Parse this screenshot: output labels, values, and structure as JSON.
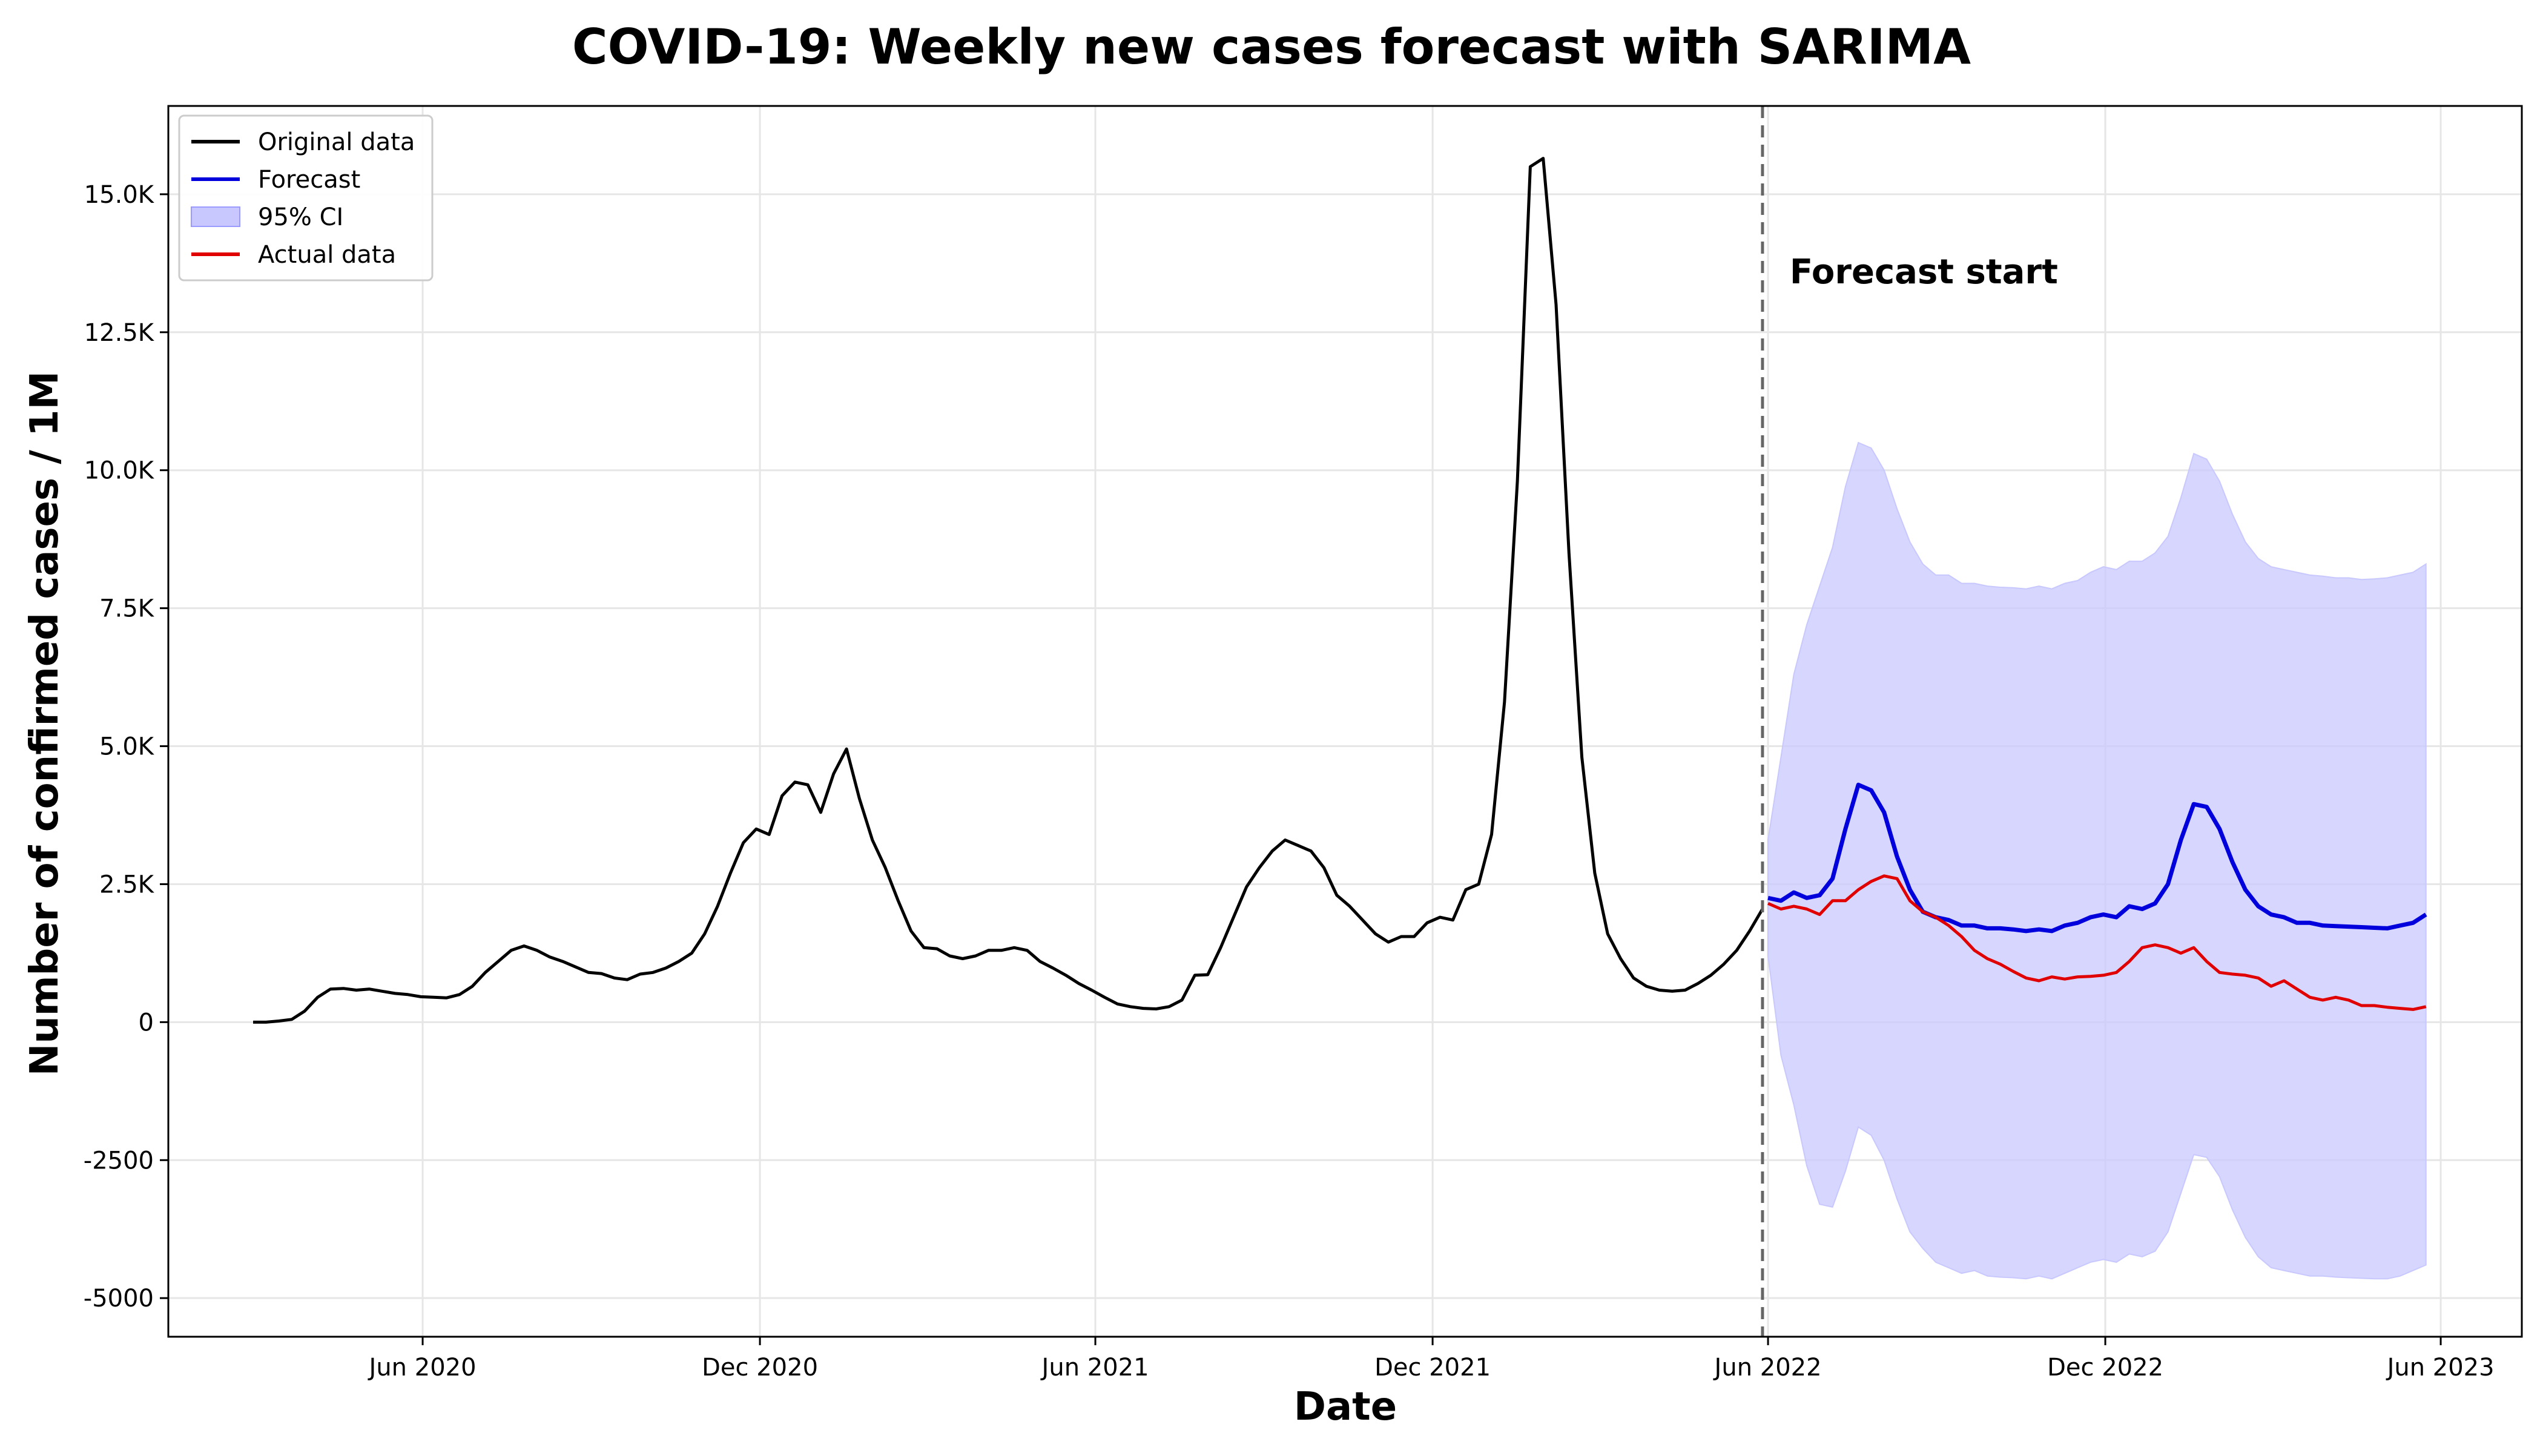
{
  "chart_data": {
    "type": "line",
    "title": "COVID-19: Weekly new cases forecast with SARIMA",
    "xlabel": "Date",
    "ylabel": "Number of confirmed cases / 1M",
    "xlim": [
      "2020-01-15",
      "2023-07-15"
    ],
    "ylim": [
      -5700,
      16600
    ],
    "grid": true,
    "legend_position": "top-left",
    "x_ticks": [
      {
        "date": "2020-06-01",
        "label": "Jun 2020"
      },
      {
        "date": "2020-12-01",
        "label": "Dec 2020"
      },
      {
        "date": "2021-06-01",
        "label": "Jun 2021"
      },
      {
        "date": "2021-12-01",
        "label": "Dec 2021"
      },
      {
        "date": "2022-06-01",
        "label": "Jun 2022"
      },
      {
        "date": "2022-12-01",
        "label": "Dec 2022"
      },
      {
        "date": "2023-06-01",
        "label": "Jun 2023"
      }
    ],
    "y_ticks": [
      {
        "value": 15000,
        "label": "15.0K"
      },
      {
        "value": 12500,
        "label": "12.5K"
      },
      {
        "value": 10000,
        "label": "10.0K"
      },
      {
        "value": 7500,
        "label": "7.5K"
      },
      {
        "value": 5000,
        "label": "5.0K"
      },
      {
        "value": 2500,
        "label": "2.5K"
      },
      {
        "value": 0,
        "label": "0"
      },
      {
        "value": -2500,
        "label": "-2500"
      },
      {
        "value": -5000,
        "label": "-5000"
      }
    ],
    "annotation": {
      "text": "Forecast start",
      "date": "2022-05-29"
    },
    "series": [
      {
        "name": "Original data",
        "color": "#000000",
        "x": [
          "2020-03-01",
          "2020-03-08",
          "2020-03-15",
          "2020-03-22",
          "2020-03-29",
          "2020-04-05",
          "2020-04-12",
          "2020-04-19",
          "2020-04-26",
          "2020-05-03",
          "2020-05-10",
          "2020-05-17",
          "2020-05-24",
          "2020-05-31",
          "2020-06-07",
          "2020-06-14",
          "2020-06-21",
          "2020-06-28",
          "2020-07-05",
          "2020-07-12",
          "2020-07-19",
          "2020-07-26",
          "2020-08-02",
          "2020-08-09",
          "2020-08-16",
          "2020-08-23",
          "2020-08-30",
          "2020-09-06",
          "2020-09-13",
          "2020-09-20",
          "2020-09-27",
          "2020-10-04",
          "2020-10-11",
          "2020-10-18",
          "2020-10-25",
          "2020-11-01",
          "2020-11-08",
          "2020-11-15",
          "2020-11-22",
          "2020-11-29",
          "2020-12-06",
          "2020-12-13",
          "2020-12-20",
          "2020-12-27",
          "2021-01-03",
          "2021-01-10",
          "2021-01-17",
          "2021-01-24",
          "2021-01-31",
          "2021-02-07",
          "2021-02-14",
          "2021-02-21",
          "2021-02-28",
          "2021-03-07",
          "2021-03-14",
          "2021-03-21",
          "2021-03-28",
          "2021-04-04",
          "2021-04-11",
          "2021-04-18",
          "2021-04-25",
          "2021-05-02",
          "2021-05-09",
          "2021-05-16",
          "2021-05-23",
          "2021-05-30",
          "2021-06-06",
          "2021-06-13",
          "2021-06-20",
          "2021-06-27",
          "2021-07-04",
          "2021-07-11",
          "2021-07-18",
          "2021-07-25",
          "2021-08-01",
          "2021-08-08",
          "2021-08-15",
          "2021-08-22",
          "2021-08-29",
          "2021-09-05",
          "2021-09-12",
          "2021-09-19",
          "2021-09-26",
          "2021-10-03",
          "2021-10-10",
          "2021-10-17",
          "2021-10-24",
          "2021-10-31",
          "2021-11-07",
          "2021-11-14",
          "2021-11-21",
          "2021-11-28",
          "2021-12-05",
          "2021-12-12",
          "2021-12-19",
          "2021-12-26",
          "2022-01-02",
          "2022-01-09",
          "2022-01-16",
          "2022-01-23",
          "2022-01-30",
          "2022-02-06",
          "2022-02-13",
          "2022-02-20",
          "2022-02-27",
          "2022-03-06",
          "2022-03-13",
          "2022-03-20",
          "2022-03-27",
          "2022-04-03",
          "2022-04-10",
          "2022-04-17",
          "2022-04-24",
          "2022-05-01",
          "2022-05-08",
          "2022-05-15",
          "2022-05-22",
          "2022-05-29"
        ],
        "y": [
          0,
          0,
          20,
          50,
          200,
          450,
          600,
          610,
          580,
          600,
          560,
          520,
          500,
          460,
          450,
          440,
          500,
          650,
          900,
          1100,
          1300,
          1380,
          1300,
          1180,
          1100,
          1000,
          900,
          880,
          800,
          770,
          870,
          900,
          980,
          1100,
          1250,
          1600,
          2100,
          2700,
          3250,
          3500,
          3400,
          4100,
          4350,
          4300,
          3800,
          4500,
          4950,
          4050,
          3300,
          2800,
          2200,
          1650,
          1350,
          1330,
          1200,
          1150,
          1200,
          1300,
          1300,
          1350,
          1300,
          1100,
          980,
          850,
          700,
          580,
          450,
          330,
          280,
          250,
          240,
          280,
          400,
          850,
          860,
          1350,
          1900,
          2450,
          2800,
          3100,
          3300,
          3200,
          3100,
          2800,
          2300,
          2100,
          1850,
          1600,
          1450,
          1550,
          1550,
          1800,
          1900,
          1850,
          2400,
          2500,
          3400,
          5800,
          9800,
          15500,
          15650,
          13000,
          8500,
          4800,
          2700,
          1600,
          1150,
          800,
          650,
          580,
          560,
          580,
          700,
          850,
          1050,
          1300,
          1650,
          2050
        ]
      },
      {
        "name": "Forecast",
        "color": "#0000dd",
        "x": [
          "2022-06-01",
          "2022-06-08",
          "2022-06-15",
          "2022-06-22",
          "2022-06-29",
          "2022-07-06",
          "2022-07-13",
          "2022-07-20",
          "2022-07-27",
          "2022-08-03",
          "2022-08-10",
          "2022-08-17",
          "2022-08-24",
          "2022-08-31",
          "2022-09-07",
          "2022-09-14",
          "2022-09-21",
          "2022-09-28",
          "2022-10-05",
          "2022-10-12",
          "2022-10-19",
          "2022-10-26",
          "2022-11-02",
          "2022-11-09",
          "2022-11-16",
          "2022-11-23",
          "2022-11-30",
          "2022-12-07",
          "2022-12-14",
          "2022-12-21",
          "2022-12-28",
          "2023-01-04",
          "2023-01-11",
          "2023-01-18",
          "2023-01-25",
          "2023-02-01",
          "2023-02-08",
          "2023-02-15",
          "2023-02-22",
          "2023-03-01",
          "2023-03-08",
          "2023-03-15",
          "2023-03-22",
          "2023-03-29",
          "2023-04-05",
          "2023-04-12",
          "2023-04-19",
          "2023-04-26",
          "2023-05-03",
          "2023-05-10",
          "2023-05-17",
          "2023-05-24"
        ],
        "y": [
          2250,
          2200,
          2350,
          2250,
          2300,
          2600,
          3500,
          4300,
          4200,
          3800,
          3000,
          2400,
          2000,
          1900,
          1850,
          1750,
          1750,
          1700,
          1700,
          1680,
          1650,
          1680,
          1650,
          1750,
          1800,
          1900,
          1950,
          1900,
          2100,
          2050,
          2150,
          2500,
          3300,
          3950,
          3900,
          3500,
          2900,
          2400,
          2100,
          1950,
          1900,
          1800,
          1800,
          1750,
          1740,
          1730,
          1720,
          1710,
          1700,
          1750,
          1800,
          1950
        ]
      },
      {
        "name": "Actual data",
        "color": "#e00000",
        "x": [
          "2022-06-01",
          "2022-06-08",
          "2022-06-15",
          "2022-06-22",
          "2022-06-29",
          "2022-07-06",
          "2022-07-13",
          "2022-07-20",
          "2022-07-27",
          "2022-08-03",
          "2022-08-10",
          "2022-08-17",
          "2022-08-24",
          "2022-08-31",
          "2022-09-07",
          "2022-09-14",
          "2022-09-21",
          "2022-09-28",
          "2022-10-05",
          "2022-10-12",
          "2022-10-19",
          "2022-10-26",
          "2022-11-02",
          "2022-11-09",
          "2022-11-16",
          "2022-11-23",
          "2022-11-30",
          "2022-12-07",
          "2022-12-14",
          "2022-12-21",
          "2022-12-28",
          "2023-01-04",
          "2023-01-11",
          "2023-01-18",
          "2023-01-25",
          "2023-02-01",
          "2023-02-08",
          "2023-02-15",
          "2023-02-22",
          "2023-03-01",
          "2023-03-08",
          "2023-03-15",
          "2023-03-22",
          "2023-03-29",
          "2023-04-05",
          "2023-04-12",
          "2023-04-19",
          "2023-04-26",
          "2023-05-03",
          "2023-05-10",
          "2023-05-17",
          "2023-05-24"
        ],
        "y": [
          2150,
          2050,
          2100,
          2050,
          1950,
          2200,
          2200,
          2400,
          2550,
          2650,
          2600,
          2200,
          2000,
          1900,
          1750,
          1550,
          1300,
          1150,
          1050,
          920,
          800,
          750,
          820,
          780,
          820,
          830,
          850,
          900,
          1100,
          1350,
          1400,
          1350,
          1250,
          1350,
          1100,
          900,
          870,
          850,
          800,
          650,
          750,
          600,
          450,
          400,
          450,
          400,
          300,
          300,
          270,
          250,
          230,
          280
        ]
      },
      {
        "name": "95% CI",
        "type": "band",
        "color": "#c8c8ff",
        "x": [
          "2022-06-01",
          "2022-06-08",
          "2022-06-15",
          "2022-06-22",
          "2022-06-29",
          "2022-07-06",
          "2022-07-13",
          "2022-07-20",
          "2022-07-27",
          "2022-08-03",
          "2022-08-10",
          "2022-08-17",
          "2022-08-24",
          "2022-08-31",
          "2022-09-07",
          "2022-09-14",
          "2022-09-21",
          "2022-09-28",
          "2022-10-05",
          "2022-10-12",
          "2022-10-19",
          "2022-10-26",
          "2022-11-02",
          "2022-11-09",
          "2022-11-16",
          "2022-11-23",
          "2022-11-30",
          "2022-12-07",
          "2022-12-14",
          "2022-12-21",
          "2022-12-28",
          "2023-01-04",
          "2023-01-11",
          "2023-01-18",
          "2023-01-25",
          "2023-02-01",
          "2023-02-08",
          "2023-02-15",
          "2023-02-22",
          "2023-03-01",
          "2023-03-08",
          "2023-03-15",
          "2023-03-22",
          "2023-03-29",
          "2023-04-05",
          "2023-04-12",
          "2023-04-19",
          "2023-04-26",
          "2023-05-03",
          "2023-05-10",
          "2023-05-17",
          "2023-05-24"
        ],
        "upper": [
          3300,
          4800,
          6300,
          7200,
          7900,
          8600,
          9700,
          10500,
          10400,
          10000,
          9300,
          8700,
          8300,
          8100,
          8100,
          7950,
          7950,
          7900,
          7880,
          7870,
          7850,
          7900,
          7850,
          7950,
          8000,
          8150,
          8250,
          8200,
          8350,
          8350,
          8500,
          8800,
          9500,
          10300,
          10200,
          9800,
          9200,
          8700,
          8400,
          8250,
          8200,
          8150,
          8100,
          8080,
          8050,
          8050,
          8020,
          8030,
          8050,
          8100,
          8150,
          8300
        ],
        "lower": [
          1200,
          -600,
          -1500,
          -2600,
          -3300,
          -3350,
          -2700,
          -1900,
          -2050,
          -2500,
          -3200,
          -3800,
          -4100,
          -4350,
          -4450,
          -4550,
          -4500,
          -4600,
          -4620,
          -4630,
          -4650,
          -4600,
          -4650,
          -4550,
          -4450,
          -4350,
          -4300,
          -4350,
          -4200,
          -4250,
          -4150,
          -3800,
          -3100,
          -2400,
          -2450,
          -2800,
          -3400,
          -3900,
          -4250,
          -4450,
          -4500,
          -4550,
          -4600,
          -4600,
          -4620,
          -4630,
          -4640,
          -4650,
          -4650,
          -4600,
          -4500,
          -4400
        ]
      }
    ],
    "legend": [
      {
        "label": "Original data",
        "kind": "line",
        "color": "#000000"
      },
      {
        "label": "Forecast",
        "kind": "line",
        "color": "#0000dd"
      },
      {
        "label": "95% CI",
        "kind": "patch",
        "color": "#c8c8ff"
      },
      {
        "label": "Actual data",
        "kind": "line",
        "color": "#e00000"
      }
    ]
  }
}
